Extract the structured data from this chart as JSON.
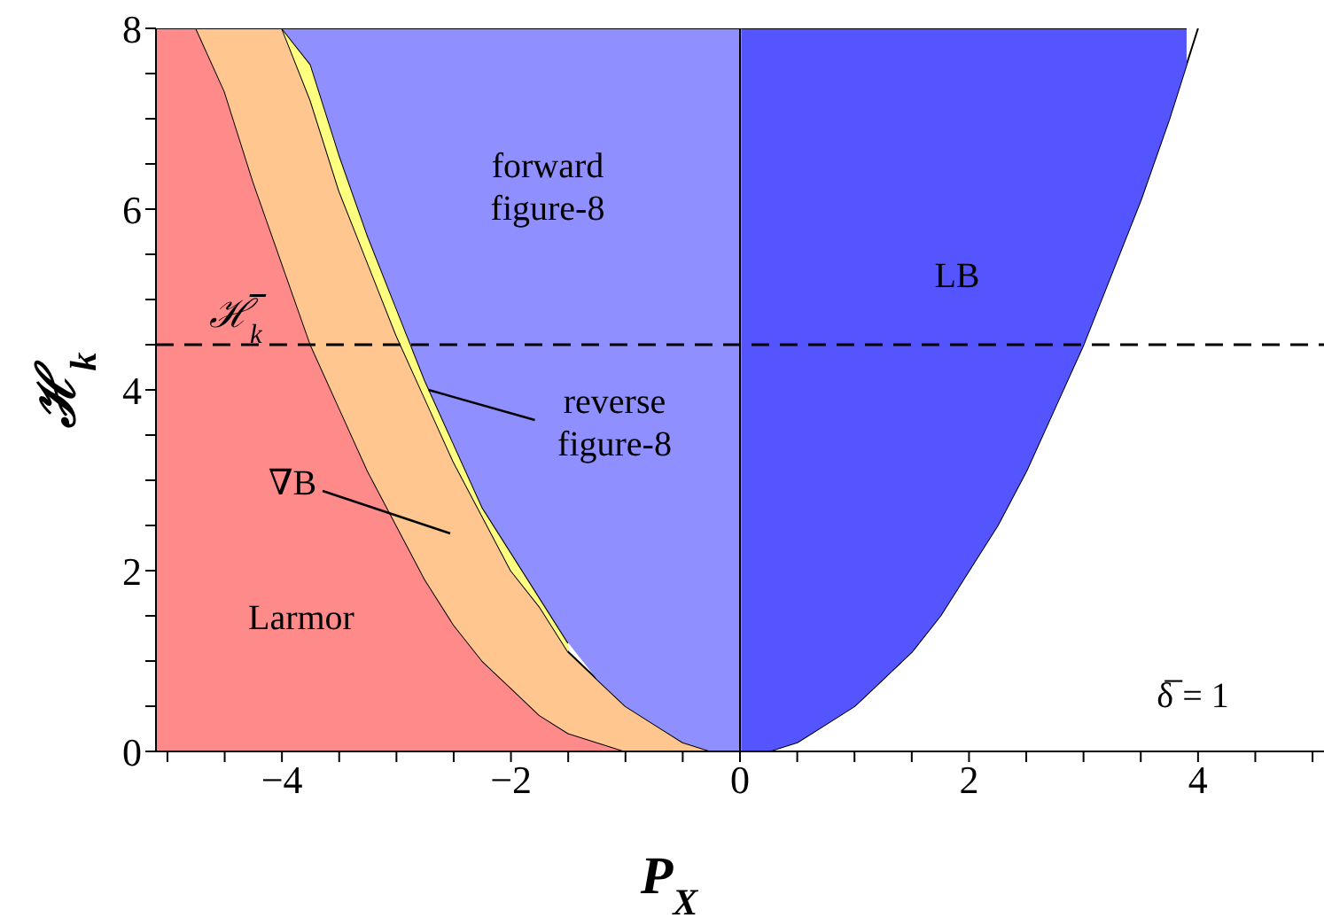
{
  "chart_data": {
    "type": "area",
    "stacked": true,
    "xlabel": "P$_{X}$",
    "ylabel": "ℋ$_{k}$",
    "xlim": [
      -5.1,
      5.1
    ],
    "xticks": [
      {
        "value": -5,
        "label": null
      },
      {
        "value": -4.5,
        "label": null
      },
      {
        "value": -4,
        "label": "−4"
      },
      {
        "value": -3.5,
        "label": null
      },
      {
        "value": -3,
        "label": null
      },
      {
        "value": -2.5,
        "label": null
      },
      {
        "value": -2,
        "label": "−2"
      },
      {
        "value": -1.5,
        "label": null
      },
      {
        "value": -1,
        "label": null
      },
      {
        "value": -0.5,
        "label": null
      },
      0,
      {
        "value": 0.5,
        "label": null
      },
      {
        "value": 1,
        "label": null
      },
      {
        "value": 1.5,
        "label": null
      },
      2,
      {
        "value": 2.5,
        "label": null
      },
      {
        "value": 3,
        "label": null
      },
      {
        "value": 3.5,
        "label": null
      },
      4,
      {
        "value": 4.5,
        "label": null
      },
      {
        "value": 5,
        "label": null
      }
    ],
    "ylim": [
      0,
      8
    ],
    "yticks": [
      0,
      {
        "value": 0.5,
        "label": null
      },
      {
        "value": 1,
        "label": null
      },
      {
        "value": 1.5,
        "label": null
      },
      2,
      {
        "value": 2.5,
        "label": null
      },
      {
        "value": 3,
        "label": null
      },
      {
        "value": 3.5,
        "label": null
      },
      4,
      {
        "value": 4.5,
        "label": null
      },
      {
        "value": 5,
        "label": null
      },
      {
        "value": 5.5,
        "label": null
      },
      6,
      {
        "value": 6.5,
        "label": null
      },
      {
        "value": 7,
        "label": null
      },
      {
        "value": 7.5,
        "label": null
      },
      8
    ],
    "grid": false,
    "x": [
      -5.1,
      -5,
      -4.75,
      -4.5,
      -4.25,
      -4,
      -3.75,
      -3.5,
      -3.25,
      -3,
      -2.75,
      -2.5,
      -2.25,
      -2,
      -1.75,
      -1.5,
      -1.25,
      -1,
      -0.75,
      -0.5,
      -0.25,
      0,
      0.01,
      0.25,
      0.5,
      0.75,
      1,
      1.25,
      1.5,
      1.75,
      2,
      2.25,
      2.5,
      2.75,
      3,
      3.25,
      3.5,
      3.75,
      3.9,
      4
    ],
    "series": [
      {
        "color": "#ff8a8a",
        "values": [
          8,
          8,
          8,
          7.3,
          6.3,
          5.4,
          4.5,
          3.8,
          3.1,
          2.5,
          1.9,
          1.4,
          1.0,
          0.7,
          0.4,
          0.2,
          0.1,
          0,
          0,
          0,
          0,
          0,
          null,
          null,
          null,
          null,
          null,
          null,
          null,
          null,
          null,
          null,
          null,
          null,
          null,
          null,
          null,
          null,
          null,
          null
        ]
      },
      {
        "color": "#ffc78f",
        "values": [
          null,
          null,
          0,
          0.7,
          1.7,
          2.6,
          2.7,
          2.4,
          2.3,
          2.1,
          2.0,
          1.8,
          1.6,
          1.3,
          1.2,
          0.9,
          0.7,
          0.5,
          0.3,
          0.1,
          0,
          0,
          null,
          null,
          null,
          null,
          null,
          null,
          null,
          null,
          null,
          null,
          null,
          null,
          null,
          null,
          null,
          null,
          null,
          null
        ]
      },
      {
        "color": "#ffff80",
        "values": [
          null,
          null,
          null,
          null,
          null,
          0,
          0.4,
          0.4,
          0.3,
          0.3,
          0.2,
          0.2,
          0.1,
          0.2,
          0.1,
          0.1,
          null,
          null,
          null,
          null,
          null,
          null,
          null,
          null,
          null,
          null,
          null,
          null,
          null,
          null,
          null,
          null,
          null,
          null,
          null,
          null,
          null,
          null,
          null,
          null
        ]
      },
      {
        "color": "#8f8fff",
        "values": [
          null,
          null,
          null,
          null,
          null,
          0,
          0.4,
          1.4,
          2.3,
          3.1,
          3.9,
          4.6,
          5.3,
          5.8,
          6.3,
          6.8,
          7.2,
          7.5,
          7.7,
          7.9,
          8,
          8,
          null,
          null,
          null,
          null,
          null,
          null,
          null,
          null,
          null,
          null,
          null,
          null,
          null,
          null,
          null,
          null,
          null,
          null
        ]
      },
      {
        "color": "#ffffff",
        "values": [
          null,
          null,
          null,
          null,
          null,
          null,
          null,
          null,
          null,
          null,
          null,
          null,
          null,
          null,
          null,
          null,
          null,
          null,
          null,
          null,
          null,
          null,
          0,
          0,
          0.1,
          0.3,
          0.5,
          0.8,
          1.1,
          1.5,
          2,
          2.5,
          3.1,
          3.8,
          4.5,
          5.3,
          6.1,
          7,
          7.6,
          8
        ]
      },
      {
        "color": "#5555ff",
        "values": [
          null,
          null,
          null,
          null,
          null,
          null,
          null,
          null,
          null,
          null,
          null,
          null,
          null,
          null,
          null,
          null,
          null,
          null,
          null,
          null,
          null,
          null,
          8,
          8,
          7.9,
          7.7,
          7.5,
          7.2,
          6.9,
          6.5,
          6,
          5.5,
          4.9,
          4.2,
          3.5,
          2.7,
          1.9,
          1,
          0.4,
          null
        ]
      }
    ],
    "ref_lines": [
      {
        "axis": "y",
        "value": 4.5,
        "label": "ℋ̅$_{k}$",
        "color": "#000000",
        "line_style": "dashed"
      },
      {
        "axis": "x",
        "value": 0,
        "color": "#000000",
        "line_style": "solid"
      }
    ],
    "annotations": [
      "forward figure-8",
      "LB",
      {
        "text": "reverse figure-8",
        "x": -2.72,
        "y": 4.0
      },
      "∇B",
      "Larmor",
      "δ̅ = 1"
    ]
  }
}
